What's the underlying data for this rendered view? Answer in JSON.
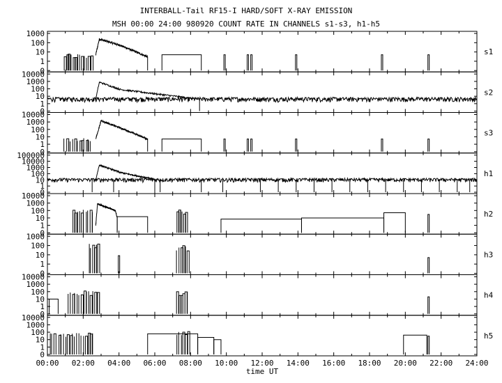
{
  "chart_data": {
    "type": "line",
    "title": "INTERBALL-Tail RF15-I HARD/SOFT X-RAY EMISSION",
    "subtitle": "MSH 00:00 24:00 980920  COUNT RATE IN CHANNELS s1-s3, h1-h5",
    "xlabel": "time UT",
    "x_ticks": [
      "00:00",
      "02:00",
      "04:00",
      "06:00",
      "08:00",
      "10:00",
      "12:00",
      "14:00",
      "16:00",
      "18:00",
      "20:00",
      "22:00",
      "24:00"
    ],
    "xlim": [
      0,
      24
    ],
    "y_scale": "log",
    "grid": false,
    "panels": [
      {
        "name": "s1",
        "yticks": [
          "1000",
          "100",
          "10",
          "1",
          "0"
        ],
        "baseline": 5,
        "features": [
          {
            "kind": "bursts",
            "start": 0.9,
            "end": 2.5,
            "level": 5
          },
          {
            "kind": "flare",
            "start": 2.7,
            "peak_time": 2.9,
            "peak": 250,
            "second_time": 4.1,
            "second": 50,
            "end": 5.6,
            "end_level": 3
          },
          {
            "kind": "block",
            "start": 6.4,
            "end": 8.6,
            "level": 5
          },
          {
            "kind": "spikes",
            "times": [
              9.9,
              11.2,
              11.4,
              13.9,
              18.7,
              21.3
            ],
            "level": 5
          }
        ]
      },
      {
        "name": "s2",
        "yticks": [
          "10000",
          "1000",
          "100",
          "10",
          "1",
          "0"
        ],
        "baseline": 4,
        "features": [
          {
            "kind": "noise",
            "start": 0,
            "end": 24,
            "level": 4
          },
          {
            "kind": "flare",
            "start": 2.7,
            "peak_time": 2.9,
            "peak": 800,
            "second_time": 4.1,
            "second": 80,
            "end": 8.5,
            "end_level": 4
          }
        ]
      },
      {
        "name": "s3",
        "yticks": [
          "10000",
          "1000",
          "100",
          "10",
          "1",
          "0"
        ],
        "baseline": 5,
        "features": [
          {
            "kind": "bursts",
            "start": 0.9,
            "end": 2.5,
            "level": 5
          },
          {
            "kind": "flare",
            "start": 2.7,
            "peak_time": 3.0,
            "peak": 1500,
            "second_time": 4.1,
            "second": 150,
            "end": 5.6,
            "end_level": 5
          },
          {
            "kind": "block",
            "start": 6.4,
            "end": 8.6,
            "level": 5
          },
          {
            "kind": "spikes",
            "times": [
              9.9,
              11.2,
              11.4,
              13.9,
              18.7,
              21.3
            ],
            "level": 5
          }
        ]
      },
      {
        "name": "h1",
        "yticks": [
          "100000",
          "10000",
          "1000",
          "100",
          "10",
          "1",
          "0"
        ],
        "baseline": 10,
        "features": [
          {
            "kind": "noise",
            "start": 0,
            "end": 24,
            "level": 10
          },
          {
            "kind": "flare",
            "start": 2.7,
            "peak_time": 2.9,
            "peak": 2500,
            "second_time": 4.1,
            "second": 150,
            "end": 6.0,
            "end_level": 12
          },
          {
            "kind": "dropouts",
            "times": [
              2.5,
              3.7,
              6.3,
              8.6,
              9.8,
              11.9,
              12.9,
              13.9,
              14.9,
              15.9,
              16.9,
              17.9,
              18.9,
              19.9,
              20.9,
              21.9,
              22.9,
              23.6
            ],
            "level": 1
          }
        ]
      },
      {
        "name": "h2",
        "yticks": [
          "10000",
          "1000",
          "100",
          "10",
          "1",
          "0"
        ],
        "baseline": 0,
        "features": [
          {
            "kind": "bursts",
            "start": 1.4,
            "end": 2.6,
            "level": 100
          },
          {
            "kind": "flare",
            "start": 2.7,
            "peak_time": 2.8,
            "peak": 800,
            "second_time": 3.8,
            "second": 100,
            "end": 3.9,
            "end_level": 10
          },
          {
            "kind": "block",
            "start": 3.9,
            "end": 5.6,
            "level": 15
          },
          {
            "kind": "bursts",
            "start": 7.2,
            "end": 7.8,
            "level": 100
          },
          {
            "kind": "block",
            "start": 9.7,
            "end": 14.2,
            "level": 7
          },
          {
            "kind": "block",
            "start": 14.2,
            "end": 18.8,
            "level": 10
          },
          {
            "kind": "block",
            "start": 18.8,
            "end": 20.0,
            "level": 50
          },
          {
            "kind": "spikes",
            "times": [
              21.3
            ],
            "level": 30
          }
        ]
      },
      {
        "name": "h3",
        "yticks": [
          "1000",
          "100",
          "10",
          "1",
          "0"
        ],
        "baseline": 0,
        "features": [
          {
            "kind": "bursts",
            "start": 2.3,
            "end": 2.9,
            "level": 120
          },
          {
            "kind": "spikes",
            "times": [
              4.0
            ],
            "level": 8
          },
          {
            "kind": "bursts",
            "start": 7.2,
            "end": 7.9,
            "level": 80
          },
          {
            "kind": "spikes",
            "times": [
              21.3
            ],
            "level": 5
          }
        ]
      },
      {
        "name": "h4",
        "yticks": [
          "10000",
          "1000",
          "100",
          "10",
          "1",
          "0"
        ],
        "baseline": 0,
        "features": [
          {
            "kind": "block",
            "start": 0.1,
            "end": 0.6,
            "level": 10
          },
          {
            "kind": "bursts",
            "start": 1.1,
            "end": 3.0,
            "level": 100
          },
          {
            "kind": "bursts",
            "start": 7.2,
            "end": 7.9,
            "level": 80
          },
          {
            "kind": "spikes",
            "times": [
              21.3
            ],
            "level": 20
          }
        ]
      },
      {
        "name": "h5",
        "yticks": [
          "10000",
          "1000",
          "100",
          "10",
          "1",
          "0"
        ],
        "baseline": 0,
        "features": [
          {
            "kind": "bursts",
            "start": 0.1,
            "end": 2.6,
            "level": 60
          },
          {
            "kind": "block",
            "start": 5.6,
            "end": 8.4,
            "level": 60
          },
          {
            "kind": "block",
            "start": 8.4,
            "end": 9.3,
            "level": 20
          },
          {
            "kind": "block",
            "start": 9.3,
            "end": 9.7,
            "level": 10
          },
          {
            "kind": "bursts",
            "start": 7.2,
            "end": 7.9,
            "level": 100
          },
          {
            "kind": "block",
            "start": 19.9,
            "end": 21.2,
            "level": 40
          },
          {
            "kind": "spikes",
            "times": [
              21.3
            ],
            "level": 30
          }
        ]
      }
    ]
  }
}
